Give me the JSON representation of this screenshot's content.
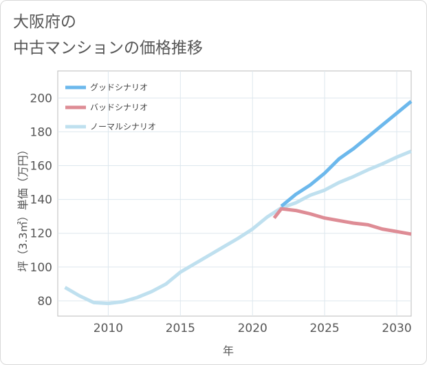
{
  "title_lines": [
    "大阪府の",
    "中古マンションの価格推移"
  ],
  "chart_data": {
    "type": "line",
    "xlabel": "年",
    "ylabel": "坪（3.3㎡）単価（万円）",
    "xlim": [
      2006.5,
      2031
    ],
    "ylim": [
      71,
      216
    ],
    "x_ticks": [
      2010,
      2015,
      2020,
      2025,
      2030
    ],
    "y_ticks": [
      80,
      100,
      120,
      140,
      160,
      180,
      200
    ],
    "grid": true,
    "legend_position": "top-left",
    "series": [
      {
        "name": "グッドシナリオ",
        "color": "#6cb8ec",
        "x": [
          2022,
          2023,
          2024,
          2025,
          2026,
          2027,
          2028,
          2029,
          2030,
          2031
        ],
        "y": [
          136,
          143,
          148.5,
          155.5,
          164,
          170,
          177,
          184,
          191,
          198
        ]
      },
      {
        "name": "バッドシナリオ",
        "color": "#de8c95",
        "x": [
          2021.5,
          2022,
          2023,
          2024,
          2025,
          2026,
          2027,
          2028,
          2029,
          2030,
          2031
        ],
        "y": [
          129,
          134.5,
          133.5,
          131.5,
          129,
          127.5,
          126,
          125,
          122.5,
          121,
          119.5
        ]
      },
      {
        "name": "ノーマルシナリオ",
        "color": "#bfe0ef",
        "x": [
          2007,
          2008,
          2009,
          2010,
          2011,
          2012,
          2013,
          2014,
          2015,
          2016,
          2017,
          2018,
          2019,
          2020,
          2021,
          2022,
          2023,
          2024,
          2025,
          2026,
          2027,
          2028,
          2029,
          2030,
          2031
        ],
        "y": [
          88,
          83,
          79,
          78.5,
          79.5,
          82,
          85.5,
          90,
          97,
          102,
          107,
          112,
          117,
          122.5,
          129.5,
          135,
          138,
          142.5,
          145.5,
          150,
          153.5,
          157.5,
          161,
          165,
          168.5
        ]
      }
    ]
  }
}
